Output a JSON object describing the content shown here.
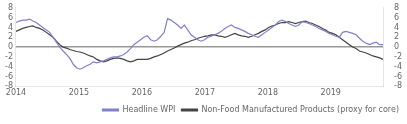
{
  "chart_data": {
    "type": "line",
    "x": [
      2014.0,
      2014.0535,
      2014.107,
      2014.1605,
      2014.2139,
      2014.2674,
      2014.3209,
      2014.3744,
      2014.4279,
      2014.4814,
      2014.5349,
      2014.5883,
      2014.6418,
      2014.6953,
      2014.7488,
      2014.8023,
      2014.8558,
      2014.9093,
      2014.9628,
      2015.0162,
      2015.0697,
      2015.1232,
      2015.1767,
      2015.2302,
      2015.2837,
      2015.3372,
      2015.3906,
      2015.4441,
      2015.4976,
      2015.5511,
      2015.6046,
      2015.6581,
      2015.7116,
      2015.765,
      2015.8185,
      2015.872,
      2015.9255,
      2015.979,
      2016.0325,
      2016.086,
      2016.1394,
      2016.1929,
      2016.2464,
      2016.2999,
      2016.3534,
      2016.4069,
      2016.4604,
      2016.5139,
      2016.5673,
      2016.6208,
      2016.6743,
      2016.7278,
      2016.7813,
      2016.8348,
      2016.8883,
      2016.9417,
      2016.9952,
      2017.0487,
      2017.1022,
      2017.1557,
      2017.2092,
      2017.2627,
      2017.3161,
      2017.3696,
      2017.4231,
      2017.4766,
      2017.5301,
      2017.5836,
      2017.6371,
      2017.6906,
      2017.744,
      2017.7975,
      2017.851,
      2017.9045,
      2017.958,
      2018.0115,
      2018.065,
      2018.1184,
      2018.1719,
      2018.2254,
      2018.2789,
      2018.3324,
      2018.3859,
      2018.4394,
      2018.4928,
      2018.5463,
      2018.5998,
      2018.6533,
      2018.7068,
      2018.7603,
      2018.8138,
      2018.8672,
      2018.9207,
      2018.9742,
      2019.0277,
      2019.0812,
      2019.1347,
      2019.1882,
      2019.2417,
      2019.2951,
      2019.3486,
      2019.4021,
      2019.4556,
      2019.5091,
      2019.5626,
      2019.6161,
      2019.6695,
      2019.723,
      2019.7765,
      2019.83
    ],
    "series": [
      {
        "name": "Headline WPI",
        "color": "#8080CC",
        "values": [
          5.0,
          5.3,
          5.5,
          5.5,
          5.7,
          5.3,
          5.0,
          4.5,
          4.0,
          3.5,
          3.0,
          2.0,
          1.0,
          0.0,
          -0.8,
          -1.5,
          -2.3,
          -3.5,
          -4.2,
          -4.5,
          -4.2,
          -3.8,
          -3.5,
          -3.0,
          -3.2,
          -3.0,
          -2.8,
          -2.5,
          -2.2,
          -2.0,
          -2.0,
          -1.8,
          -1.5,
          -1.0,
          -0.3,
          0.5,
          1.0,
          1.5,
          2.0,
          2.3,
          1.5,
          1.2,
          1.5,
          2.2,
          3.0,
          5.8,
          5.5,
          5.0,
          4.5,
          3.8,
          4.5,
          3.5,
          2.5,
          2.0,
          1.5,
          1.2,
          1.5,
          2.0,
          2.2,
          2.5,
          2.8,
          3.2,
          3.8,
          4.2,
          4.5,
          4.0,
          3.8,
          3.5,
          3.2,
          2.8,
          2.5,
          2.2,
          2.0,
          2.5,
          3.0,
          3.5,
          4.0,
          4.5,
          5.2,
          5.5,
          5.2,
          4.8,
          4.5,
          4.2,
          4.5,
          5.2,
          5.0,
          4.8,
          4.5,
          4.2,
          3.8,
          3.5,
          3.2,
          2.8,
          2.5,
          2.2,
          2.0,
          3.0,
          3.2,
          3.0,
          2.8,
          2.5,
          1.8,
          1.2,
          0.8,
          0.5,
          0.8,
          1.0,
          0.5,
          0.5
        ]
      },
      {
        "name": "Non-Food Manufactured Products (proxy for core)",
        "color": "#444444",
        "values": [
          3.2,
          3.5,
          3.8,
          4.0,
          4.2,
          4.3,
          4.0,
          3.8,
          3.5,
          3.0,
          2.5,
          2.0,
          1.2,
          0.5,
          0.0,
          -0.2,
          -0.5,
          -0.7,
          -0.9,
          -1.0,
          -1.2,
          -1.5,
          -1.8,
          -2.0,
          -2.5,
          -2.8,
          -3.0,
          -2.8,
          -2.5,
          -2.3,
          -2.2,
          -2.3,
          -2.5,
          -2.8,
          -3.0,
          -2.8,
          -2.5,
          -2.5,
          -2.5,
          -2.5,
          -2.3,
          -2.0,
          -1.8,
          -1.5,
          -1.2,
          -0.8,
          -0.5,
          -0.2,
          0.2,
          0.5,
          0.8,
          1.0,
          1.3,
          1.5,
          1.8,
          2.0,
          2.2,
          2.3,
          2.5,
          2.5,
          2.3,
          2.2,
          2.0,
          2.2,
          2.5,
          2.8,
          2.5,
          2.3,
          2.2,
          2.0,
          2.2,
          2.5,
          2.8,
          3.2,
          3.5,
          4.0,
          4.3,
          4.5,
          4.8,
          5.0,
          5.0,
          5.2,
          5.0,
          4.8,
          5.0,
          5.2,
          5.3,
          5.0,
          4.8,
          4.5,
          4.2,
          3.8,
          3.5,
          3.0,
          2.8,
          2.5,
          2.0,
          1.5,
          1.0,
          0.5,
          0.0,
          -0.3,
          -0.8,
          -1.0,
          -1.2,
          -1.5,
          -1.8,
          -2.0,
          -2.2,
          -2.5
        ]
      }
    ],
    "xlim": [
      2014.0,
      2019.83
    ],
    "xticks": [
      2014,
      2015,
      2016,
      2017,
      2018,
      2019
    ],
    "ylim": [
      -8,
      8
    ],
    "yticks": [
      -8,
      -6,
      -4,
      -2,
      0,
      2,
      4,
      6,
      8
    ],
    "y2lim": [
      -8,
      8
    ],
    "y2ticks": [
      -8,
      -6,
      -4,
      -2,
      0,
      2,
      4,
      6,
      8
    ],
    "grid": false,
    "legend": "lower right"
  }
}
